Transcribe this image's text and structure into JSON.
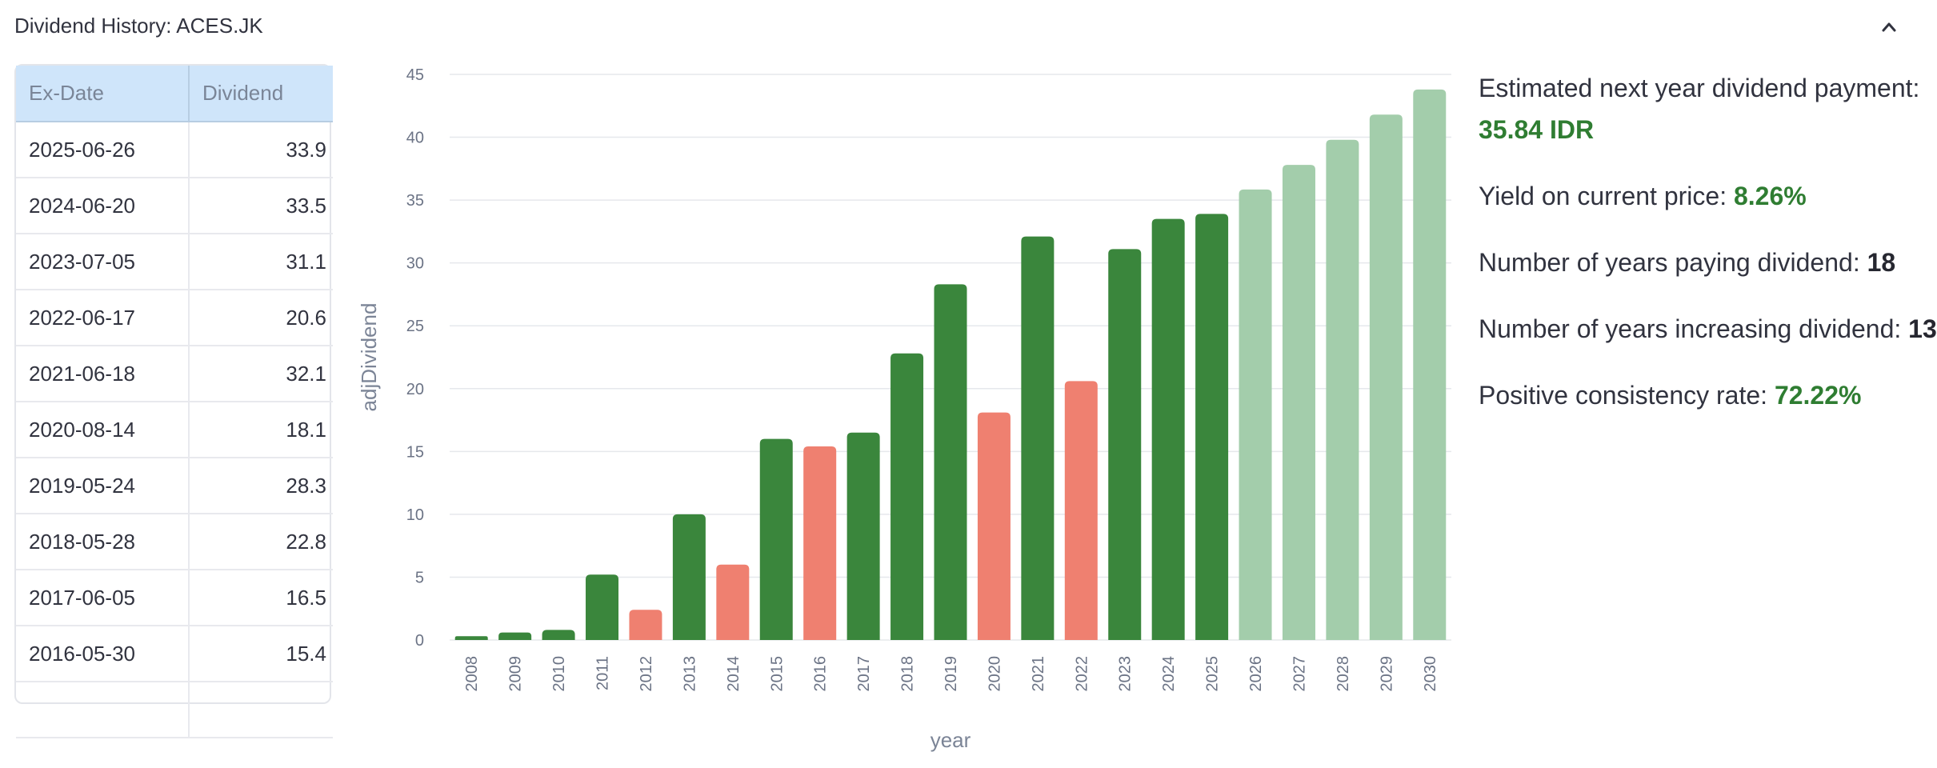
{
  "expander": {
    "title": "Dividend History: ACES.JK"
  },
  "table": {
    "headers": [
      "Ex-Date",
      "Dividend"
    ],
    "rows": [
      [
        "2025-06-26",
        "33.9"
      ],
      [
        "2024-06-20",
        "33.5"
      ],
      [
        "2023-07-05",
        "31.1"
      ],
      [
        "2022-06-17",
        "20.6"
      ],
      [
        "2021-06-18",
        "32.1"
      ],
      [
        "2020-08-14",
        "18.1"
      ],
      [
        "2019-05-24",
        "28.3"
      ],
      [
        "2018-05-28",
        "22.8"
      ],
      [
        "2017-06-05",
        "16.5"
      ],
      [
        "2016-05-30",
        "15.4"
      ],
      [
        "",
        ""
      ]
    ]
  },
  "chart_data": {
    "type": "bar",
    "xlabel": "year",
    "ylabel": "adjDividend",
    "ylim": [
      0,
      45
    ],
    "yticks": [
      0,
      5,
      10,
      15,
      20,
      25,
      30,
      35,
      40,
      45
    ],
    "categories": [
      "2008",
      "2009",
      "2010",
      "2011",
      "2012",
      "2013",
      "2014",
      "2015",
      "2016",
      "2017",
      "2018",
      "2019",
      "2020",
      "2021",
      "2022",
      "2023",
      "2024",
      "2025",
      "2026",
      "2027",
      "2028",
      "2029",
      "2030"
    ],
    "values": [
      0.3,
      0.6,
      0.8,
      5.2,
      2.4,
      10.0,
      6.0,
      16.0,
      15.4,
      16.5,
      22.8,
      28.3,
      18.1,
      32.1,
      20.6,
      31.1,
      33.5,
      33.9,
      35.84,
      37.8,
      39.8,
      41.8,
      43.8
    ],
    "status": [
      "increase",
      "increase",
      "increase",
      "increase",
      "decrease",
      "increase",
      "decrease",
      "increase",
      "decrease",
      "increase",
      "increase",
      "increase",
      "decrease",
      "increase",
      "decrease",
      "increase",
      "increase",
      "increase",
      "estimate",
      "estimate",
      "estimate",
      "estimate",
      "estimate"
    ],
    "colors": {
      "increase": "#3a863c",
      "decrease": "#ef8070",
      "estimate": "#a3cdab"
    }
  },
  "stats": {
    "next_year_label": "Estimated next year dividend payment:",
    "next_year_value": "35.84 IDR",
    "yield_label": "Yield on current price:",
    "yield_value": "8.26%",
    "years_paying_label": "Number of years paying dividend:",
    "years_paying_value": "18",
    "years_increasing_label": "Number of years increasing dividend:",
    "years_increasing_value": "13",
    "consistency_label": "Positive consistency rate:",
    "consistency_value": "72.22%"
  }
}
